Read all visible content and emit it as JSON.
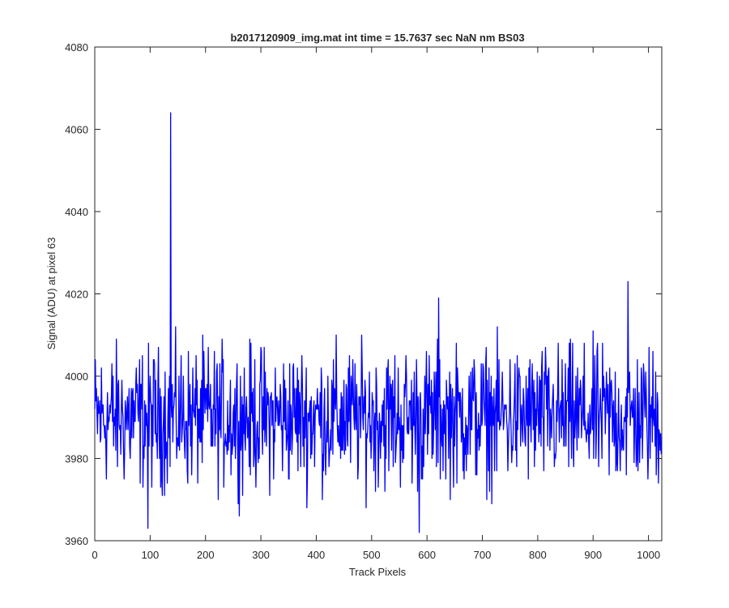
{
  "chart_data": {
    "type": "line",
    "title": "b2017120909_img.mat int time = 15.7637 sec  NaN nm BS03",
    "xlabel": "Track Pixels",
    "ylabel": "Signal (ADU) at pixel 63",
    "xlim": [
      0,
      1024
    ],
    "ylim": [
      3960,
      4080
    ],
    "xticks": [
      "0",
      "100",
      "200",
      "300",
      "400",
      "500",
      "600",
      "700",
      "800",
      "900",
      "1000"
    ],
    "yticks": [
      "3960",
      "3980",
      "4000",
      "4020",
      "4040",
      "4060",
      "4080"
    ],
    "grid": false,
    "series": [
      {
        "color": "#0000ff",
        "notable_points": [
          {
            "x": 137,
            "y": 4064
          },
          {
            "x": 963,
            "y": 4023
          },
          {
            "x": 621,
            "y": 4019
          },
          {
            "x": 96,
            "y": 3963
          },
          {
            "x": 586,
            "y": 3962
          }
        ],
        "noise_mean": 3990,
        "noise_range": [
          3965,
          4015
        ],
        "points": 1024
      }
    ]
  },
  "colors": {
    "line": "#0000ff",
    "axes": "#262626",
    "background": "#ffffff"
  }
}
